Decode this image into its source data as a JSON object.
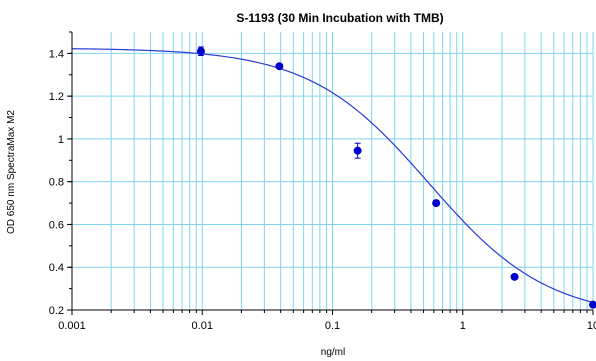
{
  "chart_data": {
    "type": "scatter",
    "title": "S-1193 (30 Min Incubation with TMB)",
    "xlabel": "ng/ml",
    "ylabel": "OD 650 nm SpectraMax M2",
    "xscale": "log",
    "xlim": [
      0.001,
      10
    ],
    "ylim": [
      0.2,
      1.5
    ],
    "x_ticks": [
      0.001,
      0.01,
      0.1,
      1,
      10
    ],
    "x_tick_labels": [
      "0.001",
      "0.01",
      "0.1",
      "1",
      "10"
    ],
    "y_ticks": [
      0.2,
      0.4,
      0.6,
      0.8,
      1.0,
      1.2,
      1.4
    ],
    "y_tick_labels": [
      "0.2",
      "0.4",
      "0.6",
      "0.8",
      "1",
      "1.2",
      "1.4"
    ],
    "grid": true,
    "legend": "none",
    "series": [
      {
        "x": [
          0.00977,
          0.0391,
          0.156,
          0.625,
          2.5,
          10
        ],
        "y": [
          1.41,
          1.34,
          0.945,
          0.7,
          0.355,
          0.225
        ],
        "yerr": [
          0.02,
          0.01,
          0.035,
          0.01,
          0.01,
          0.005
        ]
      }
    ],
    "fit": {
      "model": "4PL",
      "top": 1.425,
      "bottom": 0.16,
      "ec50": 0.55,
      "hill": 0.95
    },
    "colors": {
      "points": "#0000cc",
      "fit_line": "#2a3bd6",
      "grid": "#7fd6ee",
      "axes": "#000000"
    }
  }
}
